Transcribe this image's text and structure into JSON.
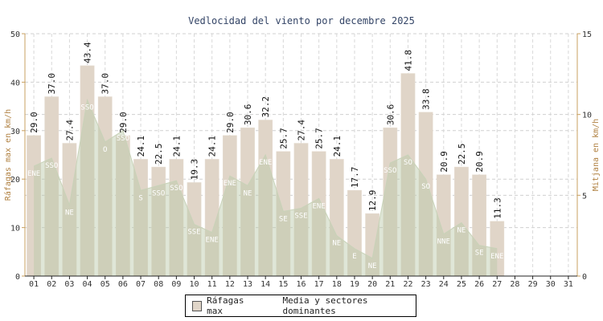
{
  "chart_data": {
    "type": "bar",
    "title": "Vedlocidad del viento por decembre 2025",
    "ylabel": "Ráfagas max en km/h",
    "ylabel_right": "Mitjana en km/h",
    "ylim": [
      0,
      50
    ],
    "ylim_right": [
      0,
      15
    ],
    "yticks": [
      "0",
      "10",
      "20",
      "30",
      "40",
      "50"
    ],
    "yticks_right": [
      "0",
      "5",
      "10",
      "15"
    ],
    "grid": true,
    "categories": [
      "01",
      "02",
      "03",
      "04",
      "05",
      "06",
      "07",
      "08",
      "09",
      "10",
      "11",
      "12",
      "13",
      "14",
      "15",
      "16",
      "17",
      "18",
      "19",
      "20",
      "21",
      "22",
      "23",
      "24",
      "25",
      "26",
      "27",
      "28",
      "29",
      "30",
      "31"
    ],
    "series": [
      {
        "name": "Ráfagas max",
        "values": [
          29.0,
          37.0,
          27.4,
          43.4,
          37.0,
          29.0,
          24.1,
          22.5,
          24.1,
          19.3,
          24.1,
          29.0,
          30.6,
          32.2,
          25.7,
          27.4,
          25.7,
          24.1,
          17.7,
          12.9,
          30.6,
          41.8,
          33.8,
          20.9,
          22.5,
          20.9,
          11.3,
          null,
          null,
          null,
          null
        ],
        "value_labels": [
          "29.0",
          "37.0",
          "27.4",
          "43.4",
          "37.0",
          "29.0",
          "24.1",
          "22.5",
          "24.1",
          "19.3",
          "24.1",
          "29.0",
          "30.6",
          "32.2",
          "25.7",
          "27.4",
          "25.7",
          "24.1",
          "17.7",
          "12.9",
          "30.6",
          "41.8",
          "33.8",
          "20.9",
          "22.5",
          "20.9",
          "11.3",
          "",
          "",
          "",
          ""
        ],
        "color": "#e0d5c8"
      },
      {
        "name": "Media y sectores dominantes",
        "values": [
          6.8,
          7.3,
          4.4,
          10.9,
          8.3,
          9.0,
          5.3,
          5.6,
          5.9,
          3.2,
          2.7,
          6.2,
          5.6,
          7.5,
          4.0,
          4.2,
          4.8,
          2.5,
          1.7,
          1.1,
          7.0,
          7.5,
          6.0,
          2.6,
          3.3,
          1.9,
          1.7,
          null,
          null,
          null,
          null
        ],
        "sectors": [
          "ENE",
          "SSO",
          "NE",
          "SSO",
          "O",
          "SSO",
          "S",
          "SSO",
          "SSO",
          "SSE",
          "ENE",
          "ENE",
          "NE",
          "ENE",
          "SE",
          "SSE",
          "ENE",
          "NE",
          "E",
          "NE",
          "SSO",
          "SO",
          "SO",
          "NNE",
          "NE",
          "SE",
          "ENE",
          "",
          "",
          "",
          ""
        ],
        "color": "#b9c7a6"
      }
    ]
  },
  "legend": {
    "bars_label": "Ráfagas max",
    "area_label": "Media y sectores dominantes"
  }
}
